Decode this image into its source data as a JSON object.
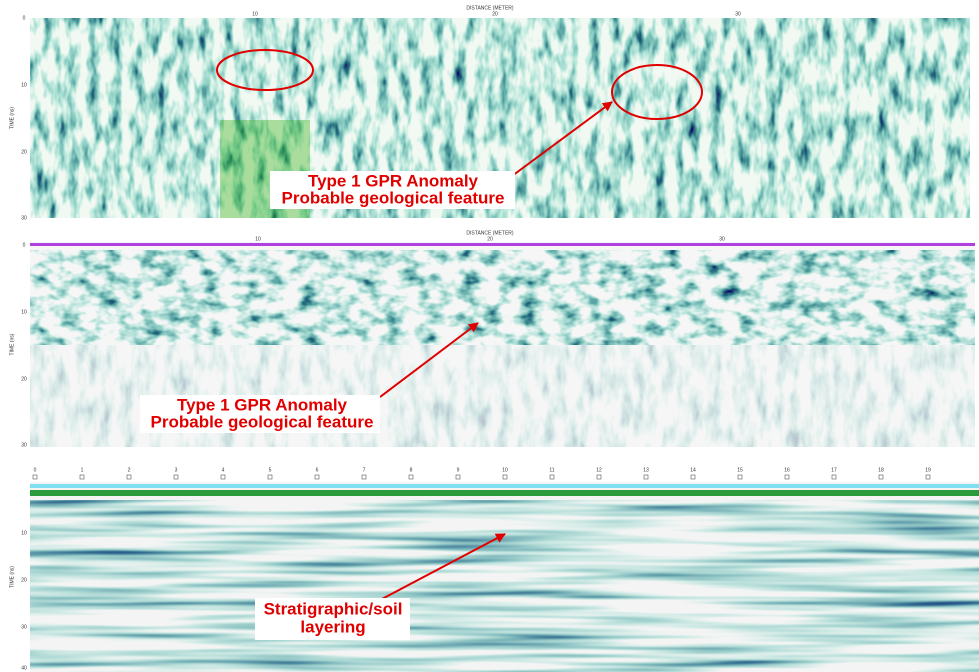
{
  "panels": [
    {
      "x_axis_label": "DISTANCE (METER)",
      "x_ticks": [
        "10",
        "20",
        "30"
      ],
      "y_axis_label": "TIME (ns)",
      "y_ticks": [
        "0",
        "10",
        "20",
        "30"
      ],
      "annotation": [
        "Type 1 GPR Anomaly",
        "Probable geological feature"
      ]
    },
    {
      "x_axis_label": "DISTANCE (METER)",
      "x_ticks": [
        "10",
        "20",
        "30"
      ],
      "y_axis_label": "TIME (ns)",
      "y_ticks": [
        "0",
        "10",
        "20",
        "30"
      ],
      "annotation": [
        "Type 1 GPR Anomaly",
        "Probable geological feature"
      ]
    },
    {
      "x_ticks": [
        "0",
        "1",
        "2",
        "3",
        "4",
        "5",
        "6",
        "7",
        "8",
        "9",
        "10",
        "11",
        "12",
        "13",
        "14",
        "15",
        "16",
        "17",
        "18",
        "19"
      ],
      "y_axis_label": "TIME (ns)",
      "y_ticks": [
        "10",
        "20",
        "30",
        "40"
      ],
      "annotation": [
        "Stratigraphic/soil",
        "layering"
      ]
    }
  ]
}
